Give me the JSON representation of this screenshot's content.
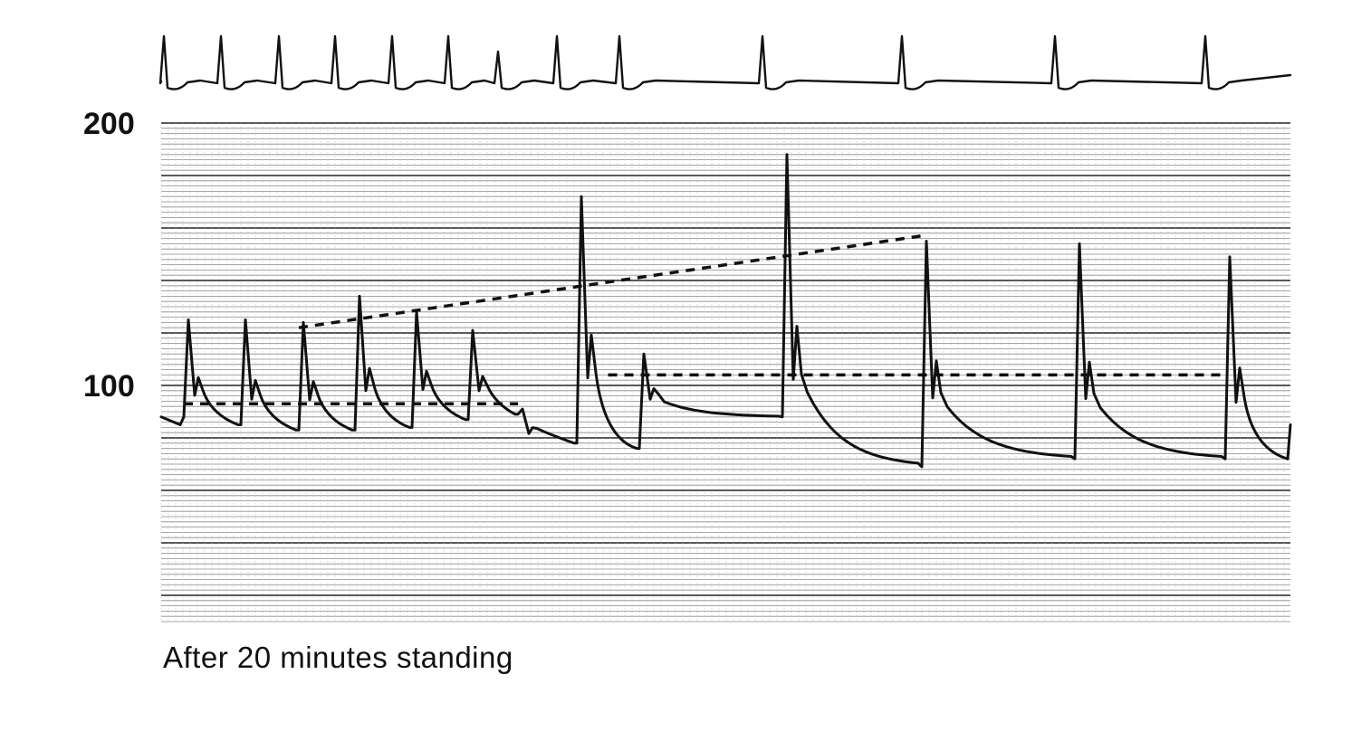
{
  "chart_data": {
    "type": "line",
    "caption": "After 20 minutes standing",
    "y_tick_labels": [
      "200",
      "100"
    ],
    "y_ticks": [
      200,
      100
    ],
    "ylim": [
      10,
      200
    ],
    "grid": true,
    "series": [
      {
        "kind": "arterial-pressure-trace",
        "beats": [
          {
            "peak": 125,
            "trough": 85
          },
          {
            "peak": 125,
            "trough": 83
          },
          {
            "peak": 124,
            "trough": 83
          },
          {
            "peak": 134,
            "trough": 84
          },
          {
            "peak": 128,
            "trough": 87
          },
          {
            "peak": 121,
            "trough": 89
          },
          {
            "peak": 91,
            "trough": 78
          },
          {
            "peak": 172,
            "trough": 76
          },
          {
            "peak": 112,
            "trough": 88
          },
          {
            "peak": 188,
            "trough": 69
          },
          {
            "peak": 155,
            "trough": 72
          },
          {
            "peak": 154,
            "trough": 72
          },
          {
            "peak": 149,
            "trough": 72
          }
        ]
      }
    ],
    "reference_lines": [
      {
        "style": "dashed",
        "from": {
          "beat": 1,
          "y": 93
        },
        "to": {
          "beat": 7,
          "y": 93
        }
      },
      {
        "style": "dashed",
        "from": {
          "beat": 3,
          "y": 122
        },
        "to": {
          "beat": 11,
          "y": 157
        }
      },
      {
        "style": "dashed",
        "from": {
          "beat": 8.5,
          "y": 104
        },
        "to": {
          "beat": 14,
          "y": 104
        }
      }
    ],
    "ecg": {
      "kind": "ecg-trace",
      "beat_count": 13
    }
  }
}
